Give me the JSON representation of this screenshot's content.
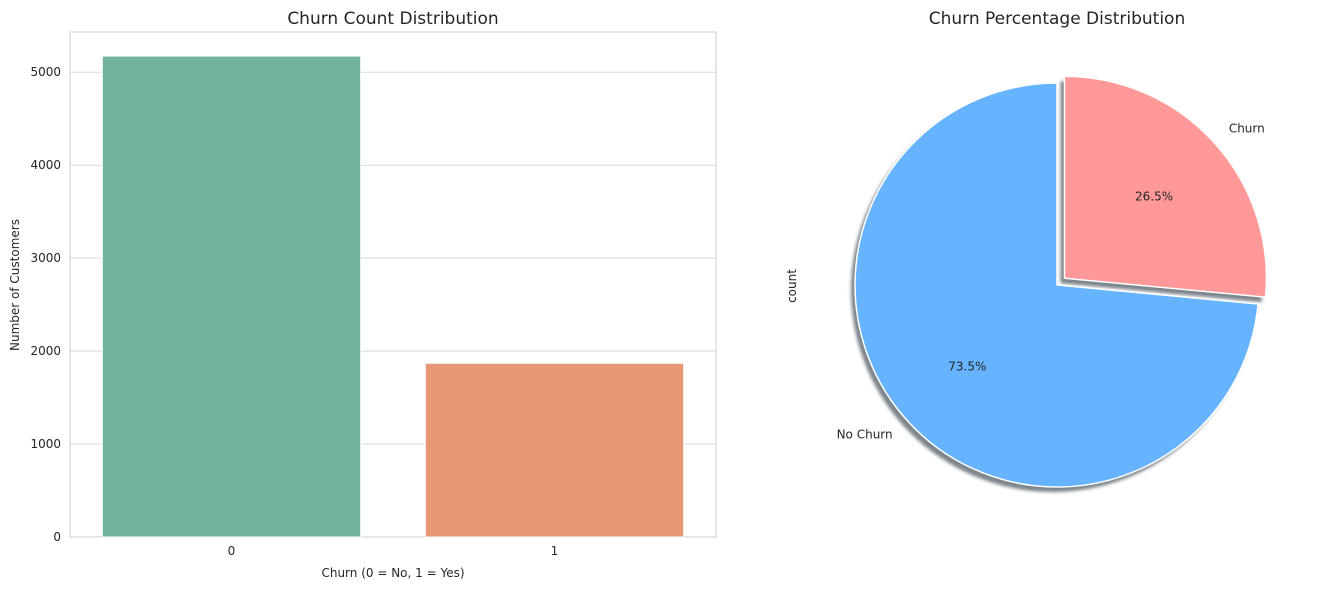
{
  "chart_data": [
    {
      "type": "bar",
      "title": "Churn Count Distribution",
      "xlabel": "Churn (0 = No, 1 = Yes)",
      "ylabel": "Number of Customers",
      "categories": [
        "0",
        "1"
      ],
      "values": [
        5174,
        1869
      ],
      "colors": [
        "#73b4a0",
        "#e89774"
      ],
      "ylim": [
        0,
        5433
      ],
      "yticks": [
        0,
        1000,
        2000,
        3000,
        4000,
        5000
      ],
      "grid": true
    },
    {
      "type": "pie",
      "title": "Churn Percentage Distribution",
      "ylabel": "count",
      "labels": [
        "No Churn",
        "Churn"
      ],
      "values": [
        73.5,
        26.5
      ],
      "autopct": [
        "73.5%",
        "26.5%"
      ],
      "colors": [
        "#66b3ff",
        "#ff9999"
      ],
      "explode": [
        0,
        0.05
      ],
      "shadow": true,
      "startangle": 90
    }
  ]
}
